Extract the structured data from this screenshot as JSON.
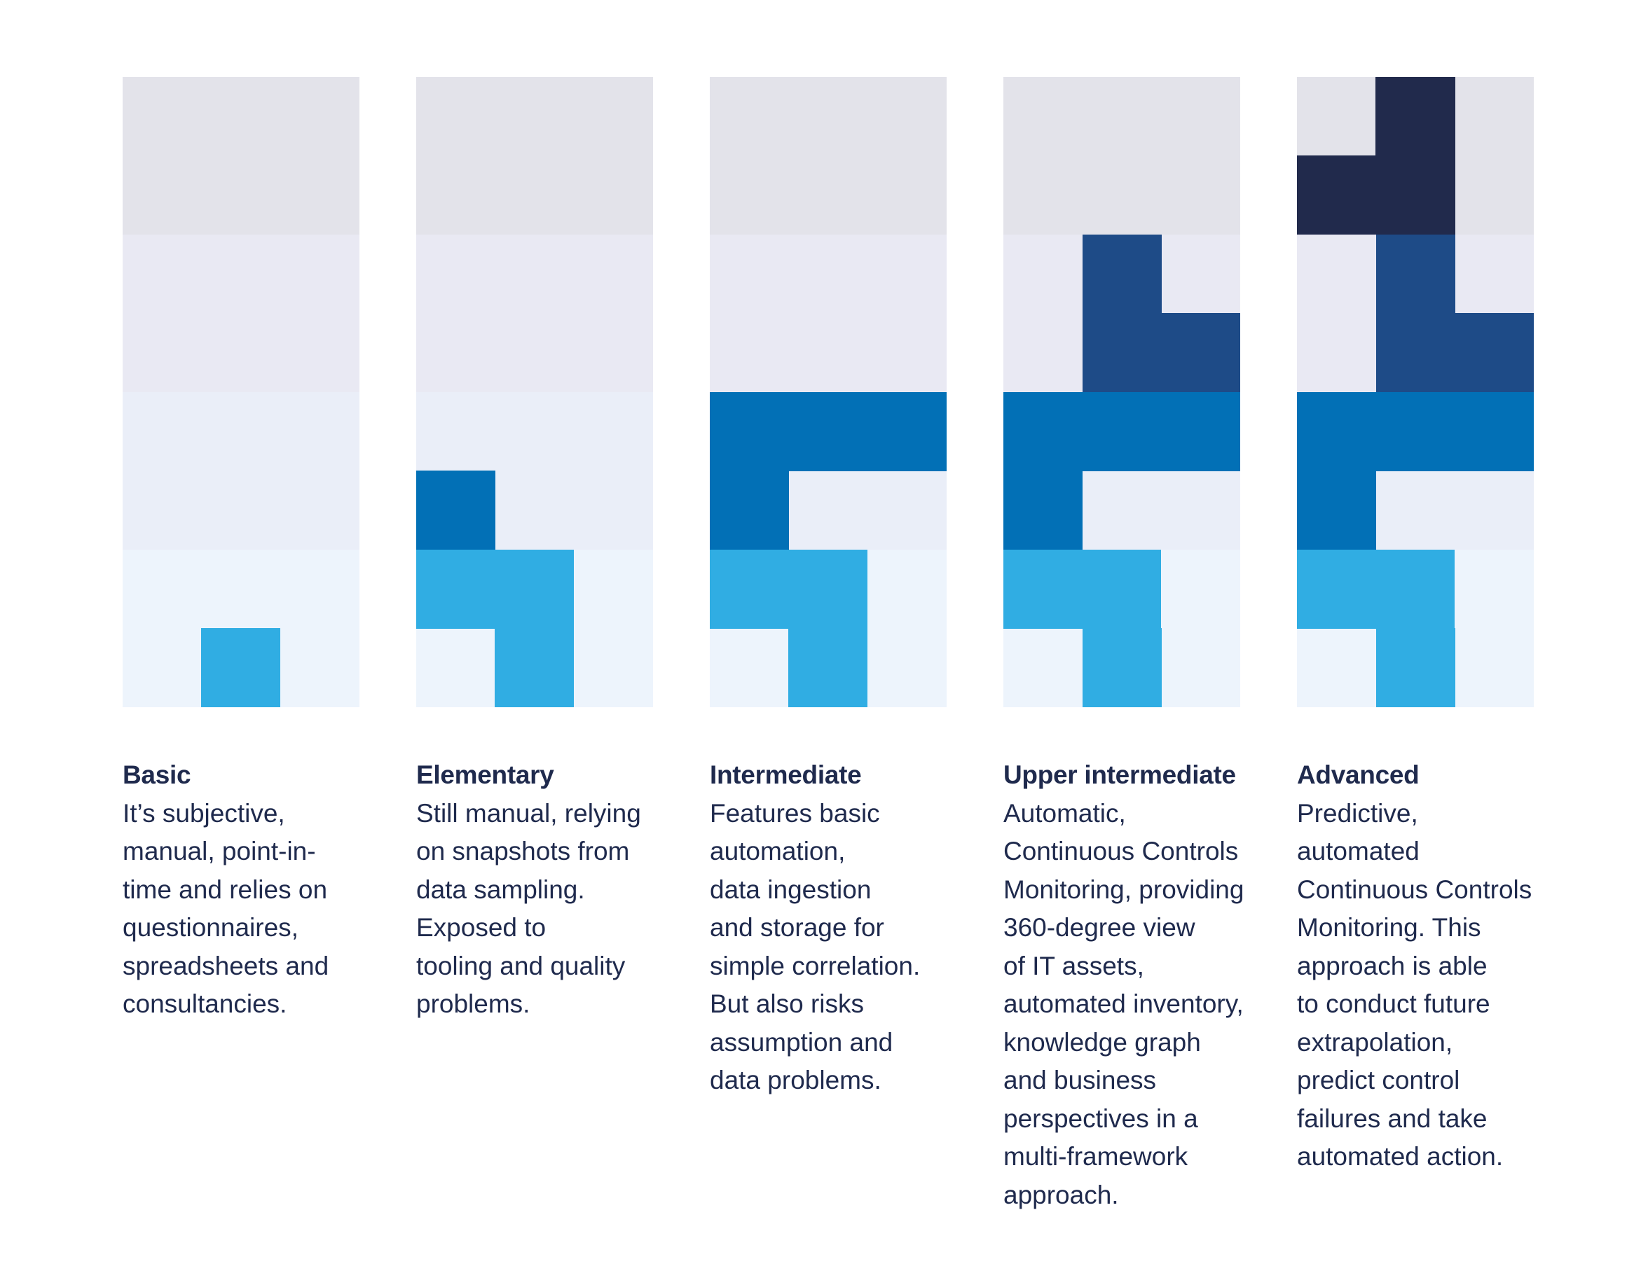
{
  "colors": {
    "band_top": "#e3e3ea",
    "band_upper_mid": "#e9e9f3",
    "band_lower_mid": "#eaeef8",
    "band_bottom": "#edf4fc",
    "level_1": "#30ade3",
    "level_2": "#0270b6",
    "level_3": "#1e4b87",
    "level_4": "#212a4c",
    "text": "#1f2a4d"
  },
  "levels": [
    {
      "title": "Basic",
      "description": "It’s subjective,\nmanual, point-in-\ntime and relies on\nquestionnaires,\nspreadsheets and\nconsultancies."
    },
    {
      "title": "Elementary",
      "description": "Still manual, relying\non snapshots from\ndata sampling.\nExposed to\ntooling and quality\nproblems."
    },
    {
      "title": "Intermediate",
      "description": "Features basic\nautomation,\ndata ingestion\nand storage for\nsimple correlation.\nBut also risks\nassumption and\ndata problems."
    },
    {
      "title": "Upper intermediate",
      "description": "Automatic,\nContinuous Controls\nMonitoring, providing\n360-degree view\nof IT assets,\nautomated inventory,\nknowledge graph\nand business\nperspectives in a\nmulti-framework\napproach."
    },
    {
      "title": "Advanced",
      "description": "Predictive,\nautomated\nContinuous Controls\nMonitoring. This\napproach is able\nto conduct future\nextrapolation,\npredict control\nfailures and take\nautomated action."
    }
  ]
}
